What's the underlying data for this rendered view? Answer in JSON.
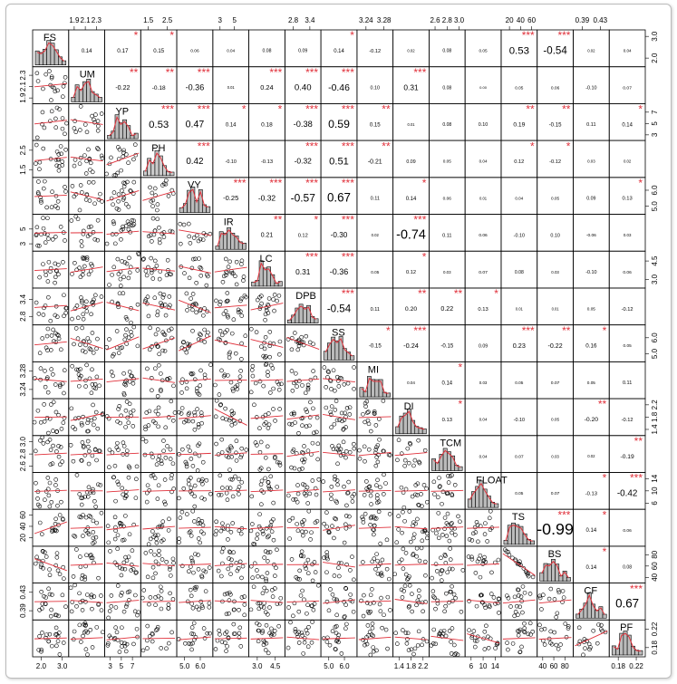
{
  "chart_data": {
    "type": "pairs",
    "variables": [
      {
        "name": "FS",
        "lim": [
          1.6,
          3.3
        ],
        "ticks": [
          {
            "value": 2,
            "label": "2.0"
          },
          {
            "value": 3,
            "label": "3.0"
          }
        ]
      },
      {
        "name": "UM",
        "lim": [
          1.8,
          2.45
        ],
        "ticks": [
          1.9,
          2.1,
          2.3
        ]
      },
      {
        "name": "YP",
        "lim": [
          2,
          8.5
        ],
        "ticks": [
          3,
          5,
          7
        ]
      },
      {
        "name": "PH",
        "lim": [
          1.1,
          3
        ],
        "ticks": [
          1.5,
          2.5
        ]
      },
      {
        "name": "VY",
        "lim": [
          4.5,
          6.8
        ],
        "ticks": [
          {
            "value": 5,
            "label": "5.0"
          },
          {
            "value": 6,
            "label": "6.0"
          }
        ]
      },
      {
        "name": "IR",
        "lim": [
          2,
          7
        ],
        "ticks": [
          3,
          5
        ]
      },
      {
        "name": "LC",
        "lim": [
          2.3,
          5.3
        ],
        "ticks": [
          {
            "value": 3,
            "label": "3.0"
          },
          4.5
        ]
      },
      {
        "name": "DPB",
        "lim": [
          2.5,
          3.8
        ],
        "ticks": [
          2.8,
          3.4
        ]
      },
      {
        "name": "SS",
        "lim": [
          4.5,
          6.8
        ],
        "ticks": [
          {
            "value": 5,
            "label": "5.0"
          },
          {
            "value": 6,
            "label": "6.0"
          }
        ]
      },
      {
        "name": "MI",
        "lim": [
          3.22,
          3.3
        ],
        "ticks": [
          3.24,
          3.28
        ]
      },
      {
        "name": "DI",
        "lim": [
          1.2,
          2.4
        ],
        "ticks": [
          1.4,
          1.8,
          2.2
        ]
      },
      {
        "name": "TCM",
        "lim": [
          2.5,
          3.1
        ],
        "ticks": [
          2.6,
          2.8,
          {
            "value": 3,
            "label": "3.0"
          }
        ]
      },
      {
        "name": "FLOAT",
        "lim": [
          4,
          16
        ],
        "ticks": [
          6,
          10,
          14
        ]
      },
      {
        "name": "TS",
        "lim": [
          5,
          70
        ],
        "ticks": [
          20,
          40,
          60
        ]
      },
      {
        "name": "BS",
        "lim": [
          30,
          95
        ],
        "ticks": [
          40,
          60,
          80
        ]
      },
      {
        "name": "CF",
        "lim": [
          0.37,
          0.45
        ],
        "ticks": [
          0.39,
          0.43
        ]
      },
      {
        "name": "PF",
        "lim": [
          0.16,
          0.24
        ],
        "ticks": [
          0.18,
          0.22
        ]
      }
    ],
    "correlations": [
      [
        {
          "r": 0.14,
          "label": "0.14"
        },
        {
          "r": 0.17,
          "label": "0.17",
          "stars": "*"
        },
        {
          "r": 0.15,
          "label": "0.15",
          "stars": "*"
        },
        {
          "r": 0.06,
          "label": "0.06"
        },
        {
          "r": 0.04,
          "label": "0.04"
        },
        {
          "r": 0.08,
          "label": "0.08"
        },
        {
          "r": 0.09,
          "label": "0.09"
        },
        {
          "r": 0.14,
          "label": "0.14",
          "stars": "*"
        },
        {
          "r": -0.12,
          "label": "-0.12"
        },
        {
          "r": 0.02,
          "label": "0.02"
        },
        {
          "r": 0.08,
          "label": "0.08"
        },
        {
          "r": 0.05,
          "label": "0.05"
        },
        {
          "r": 0.53,
          "label": "0.53",
          "stars": "***"
        },
        {
          "r": -0.54,
          "label": "-0.54",
          "stars": "***"
        },
        {
          "r": 0.02,
          "label": "0.02"
        },
        {
          "r": 0.04,
          "label": "0.04"
        }
      ],
      [
        {
          "r": -0.22,
          "label": "-0.22",
          "stars": "**"
        },
        {
          "r": -0.18,
          "label": "-0.18",
          "stars": "**"
        },
        {
          "r": -0.36,
          "label": "-0.36",
          "stars": "***"
        },
        {
          "r": 0.01,
          "label": "0.01"
        },
        {
          "r": 0.24,
          "label": "0.24",
          "stars": "***"
        },
        {
          "r": 0.4,
          "label": "0.40",
          "stars": "***"
        },
        {
          "r": -0.46,
          "label": "-0.46",
          "stars": "***"
        },
        {
          "r": 0.1,
          "label": "0.10"
        },
        {
          "r": 0.31,
          "label": "0.31",
          "stars": "***"
        },
        {
          "r": 0.08,
          "label": "0.08"
        },
        {
          "r": 0,
          "label": "0.00"
        },
        {
          "r": 0.05,
          "label": "0.05"
        },
        {
          "r": 0.06,
          "label": "0.06"
        },
        {
          "r": -0.1,
          "label": "-0.10"
        },
        {
          "r": 0.07,
          "label": "0.07"
        }
      ],
      [
        {
          "r": 0.53,
          "label": "0.53",
          "stars": "***"
        },
        {
          "r": 0.47,
          "label": "0.47",
          "stars": "***"
        },
        {
          "r": 0.14,
          "label": "0.14",
          "stars": "*"
        },
        {
          "r": 0.18,
          "label": "0.18",
          "stars": "*"
        },
        {
          "r": -0.38,
          "label": "-0.38",
          "stars": "***"
        },
        {
          "r": 0.59,
          "label": "0.59",
          "stars": "***"
        },
        {
          "r": 0.15,
          "label": "0.15",
          "stars": "**"
        },
        {
          "r": 0.01,
          "label": "0.01"
        },
        {
          "r": 0.08,
          "label": "0.08"
        },
        {
          "r": 0.1,
          "label": "0.10"
        },
        {
          "r": 0.19,
          "label": "0.19",
          "stars": "**"
        },
        {
          "r": -0.15,
          "label": "-0.15",
          "stars": "**"
        },
        {
          "r": 0.11,
          "label": "0.11"
        },
        {
          "r": 0.14,
          "label": "0.14",
          "stars": "*"
        }
      ],
      [
        {
          "r": 0.42,
          "label": "0.42",
          "stars": "***"
        },
        {
          "r": -0.1,
          "label": "-0.10"
        },
        {
          "r": -0.13,
          "label": "-0.13"
        },
        {
          "r": -0.32,
          "label": "-0.32",
          "stars": "***"
        },
        {
          "r": 0.51,
          "label": "0.51",
          "stars": "***"
        },
        {
          "r": -0.21,
          "label": "-0.21",
          "stars": "**"
        },
        {
          "r": 0.09,
          "label": "0.09"
        },
        {
          "r": 0.05,
          "label": "0.05"
        },
        {
          "r": 0.04,
          "label": "0.04"
        },
        {
          "r": 0.12,
          "label": "0.12",
          "stars": "*"
        },
        {
          "r": -0.12,
          "label": "-0.12",
          "stars": "*"
        },
        {
          "r": 0.03,
          "label": "0.03"
        },
        {
          "r": 0.02,
          "label": "0.02"
        }
      ],
      [
        {
          "r": -0.25,
          "label": "-0.25",
          "stars": "***"
        },
        {
          "r": -0.32,
          "label": "-0.32",
          "stars": "***"
        },
        {
          "r": -0.57,
          "label": "-0.57",
          "stars": "***"
        },
        {
          "r": 0.67,
          "label": "0.67",
          "stars": "***"
        },
        {
          "r": 0.11,
          "label": "0.11"
        },
        {
          "r": 0.14,
          "label": "0.14",
          "stars": "*"
        },
        {
          "r": 0.06,
          "label": "0.06"
        },
        {
          "r": 0.01,
          "label": "0.01"
        },
        {
          "r": 0.04,
          "label": "0.04"
        },
        {
          "r": 0.05,
          "label": "0.05"
        },
        {
          "r": 0.09,
          "label": "0.09"
        },
        {
          "r": 0.13,
          "label": "0.13",
          "stars": "*"
        }
      ],
      [
        {
          "r": 0.21,
          "label": "0.21",
          "stars": "**"
        },
        {
          "r": 0.12,
          "label": "0.12",
          "stars": "*"
        },
        {
          "r": -0.3,
          "label": "-0.30",
          "stars": "***"
        },
        {
          "r": 0.02,
          "label": "0.02"
        },
        {
          "r": -0.74,
          "label": "-0.74",
          "stars": "***"
        },
        {
          "r": 0.11,
          "label": "0.11"
        },
        {
          "r": 0.06,
          "label": "0.06"
        },
        {
          "r": -0.1,
          "label": "-0.10"
        },
        {
          "r": 0.1,
          "label": "0.10"
        },
        {
          "r": -0.06,
          "label": "-0.06"
        },
        {
          "r": 0.03,
          "label": "0.03"
        }
      ],
      [
        {
          "r": 0.31,
          "label": "0.31",
          "stars": "***"
        },
        {
          "r": -0.36,
          "label": "-0.36",
          "stars": "***"
        },
        {
          "r": 0.05,
          "label": "0.05"
        },
        {
          "r": 0.12,
          "label": "0.12",
          "stars": "*"
        },
        {
          "r": 0.03,
          "label": "0.03"
        },
        {
          "r": 0.07,
          "label": "0.07"
        },
        {
          "r": 0.08,
          "label": "0.08"
        },
        {
          "r": 0.03,
          "label": "0.03"
        },
        {
          "r": -0.1,
          "label": "-0.10"
        },
        {
          "r": 0.06,
          "label": "0.06"
        }
      ],
      [
        {
          "r": -0.54,
          "label": "-0.54",
          "stars": "***"
        },
        {
          "r": 0.11,
          "label": "0.11"
        },
        {
          "r": 0.2,
          "label": "0.20",
          "stars": "**"
        },
        {
          "r": 0.22,
          "label": "0.22",
          "stars": "**"
        },
        {
          "r": 0.13,
          "label": "0.13",
          "stars": "*"
        },
        {
          "r": 0.01,
          "label": "0.01"
        },
        {
          "r": 0.01,
          "label": "0.01"
        },
        {
          "r": 0.05,
          "label": "0.05"
        },
        {
          "r": -0.12,
          "label": "-0.12"
        }
      ],
      [
        {
          "r": -0.15,
          "label": "-0.15",
          "stars": "*"
        },
        {
          "r": -0.24,
          "label": "-0.24",
          "stars": "***"
        },
        {
          "r": -0.15,
          "label": "-0.15"
        },
        {
          "r": 0.09,
          "label": "0.09"
        },
        {
          "r": 0.23,
          "label": "0.23",
          "stars": "***"
        },
        {
          "r": -0.22,
          "label": "-0.22",
          "stars": "**"
        },
        {
          "r": 0.16,
          "label": "0.16",
          "stars": "*"
        },
        {
          "r": 0.05,
          "label": "0.05"
        }
      ],
      [
        {
          "r": 0.04,
          "label": "0.04"
        },
        {
          "r": 0.14,
          "label": "0.14",
          "stars": "*"
        },
        {
          "r": 0.03,
          "label": "0.03"
        },
        {
          "r": 0.05,
          "label": "0.05"
        },
        {
          "r": 0.07,
          "label": "0.07"
        },
        {
          "r": 0.05,
          "label": "0.05"
        },
        {
          "r": 0.11,
          "label": "0.11"
        }
      ],
      [
        {
          "r": 0.13,
          "label": "0.13",
          "stars": "*"
        },
        {
          "r": 0.04,
          "label": "0.04"
        },
        {
          "r": -0.1,
          "label": "-0.10"
        },
        {
          "r": 0.05,
          "label": "0.05"
        },
        {
          "r": -0.2,
          "label": "-0.20",
          "stars": "**"
        },
        {
          "r": -0.12,
          "label": "-0.12"
        }
      ],
      [
        {
          "r": 0.04,
          "label": "0.04"
        },
        {
          "r": 0.07,
          "label": "0.07"
        },
        {
          "r": 0.03,
          "label": "0.03"
        },
        {
          "r": 0.02,
          "label": "0.02"
        },
        {
          "r": -0.19,
          "label": "-0.19",
          "stars": "**"
        }
      ],
      [
        {
          "r": 0.05,
          "label": "0.05"
        },
        {
          "r": 0.07,
          "label": "0.07"
        },
        {
          "r": -0.13,
          "label": "-0.13",
          "stars": "*"
        },
        {
          "r": -0.42,
          "label": "-0.42",
          "stars": "***"
        }
      ],
      [
        {
          "r": -0.99,
          "label": "-0.99",
          "stars": "***"
        },
        {
          "r": 0.14,
          "label": "0.14",
          "stars": "*"
        },
        {
          "r": 0.06,
          "label": "0.06"
        }
      ],
      [
        {
          "r": 0.14,
          "label": "0.14",
          "stars": "*"
        },
        {
          "r": 0.08,
          "label": "0.08"
        }
      ],
      [
        {
          "r": 0.67,
          "label": "0.67",
          "stars": "***"
        }
      ]
    ]
  }
}
